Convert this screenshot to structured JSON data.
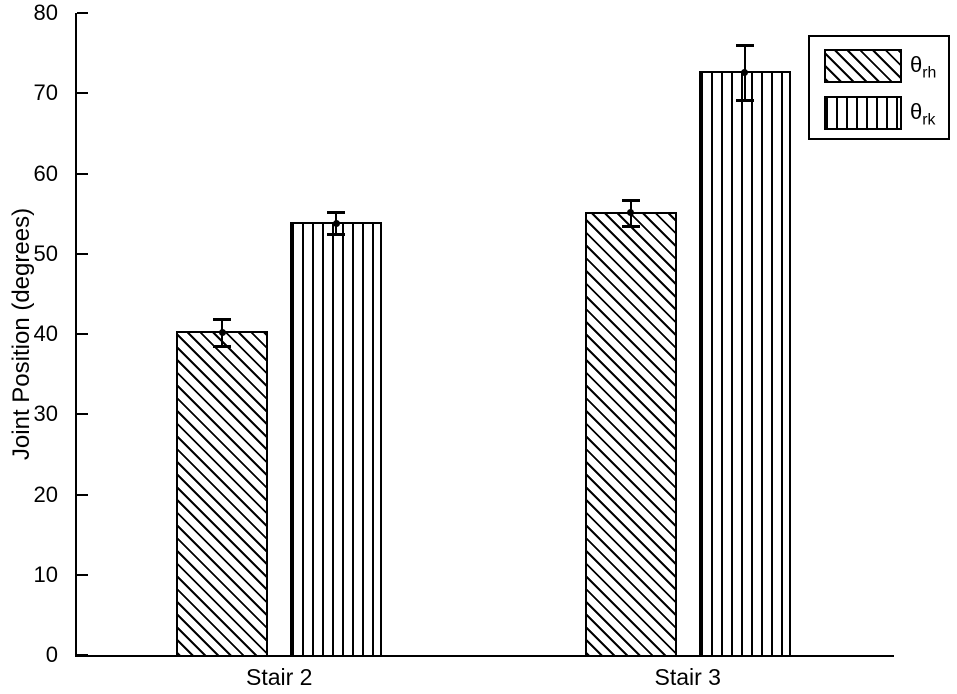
{
  "figure": {
    "background": "#ffffff"
  },
  "chart_data": {
    "type": "bar",
    "title": "",
    "xlabel": "",
    "ylabel": "Joint Position (degrees)",
    "categories": [
      "Stair 2",
      "Stair 3"
    ],
    "series": [
      {
        "name": "theta_rh",
        "label_symbol": "θ",
        "label_subscript": "rh",
        "hatch": "diagonal",
        "values": [
          40.2,
          55.1
        ],
        "errors": [
          1.7,
          1.6
        ]
      },
      {
        "name": "theta_rk",
        "label_symbol": "θ",
        "label_subscript": "rk",
        "hatch": "vertical",
        "values": [
          53.8,
          72.6
        ],
        "errors": [
          1.4,
          3.4
        ]
      }
    ],
    "ylim": [
      0,
      80
    ],
    "yticks": [
      0,
      10,
      20,
      30,
      40,
      50,
      60,
      70,
      80
    ],
    "grid": false,
    "legend_position": "top-right",
    "line_color": "#000000",
    "bar_fill": "#ffffff"
  }
}
